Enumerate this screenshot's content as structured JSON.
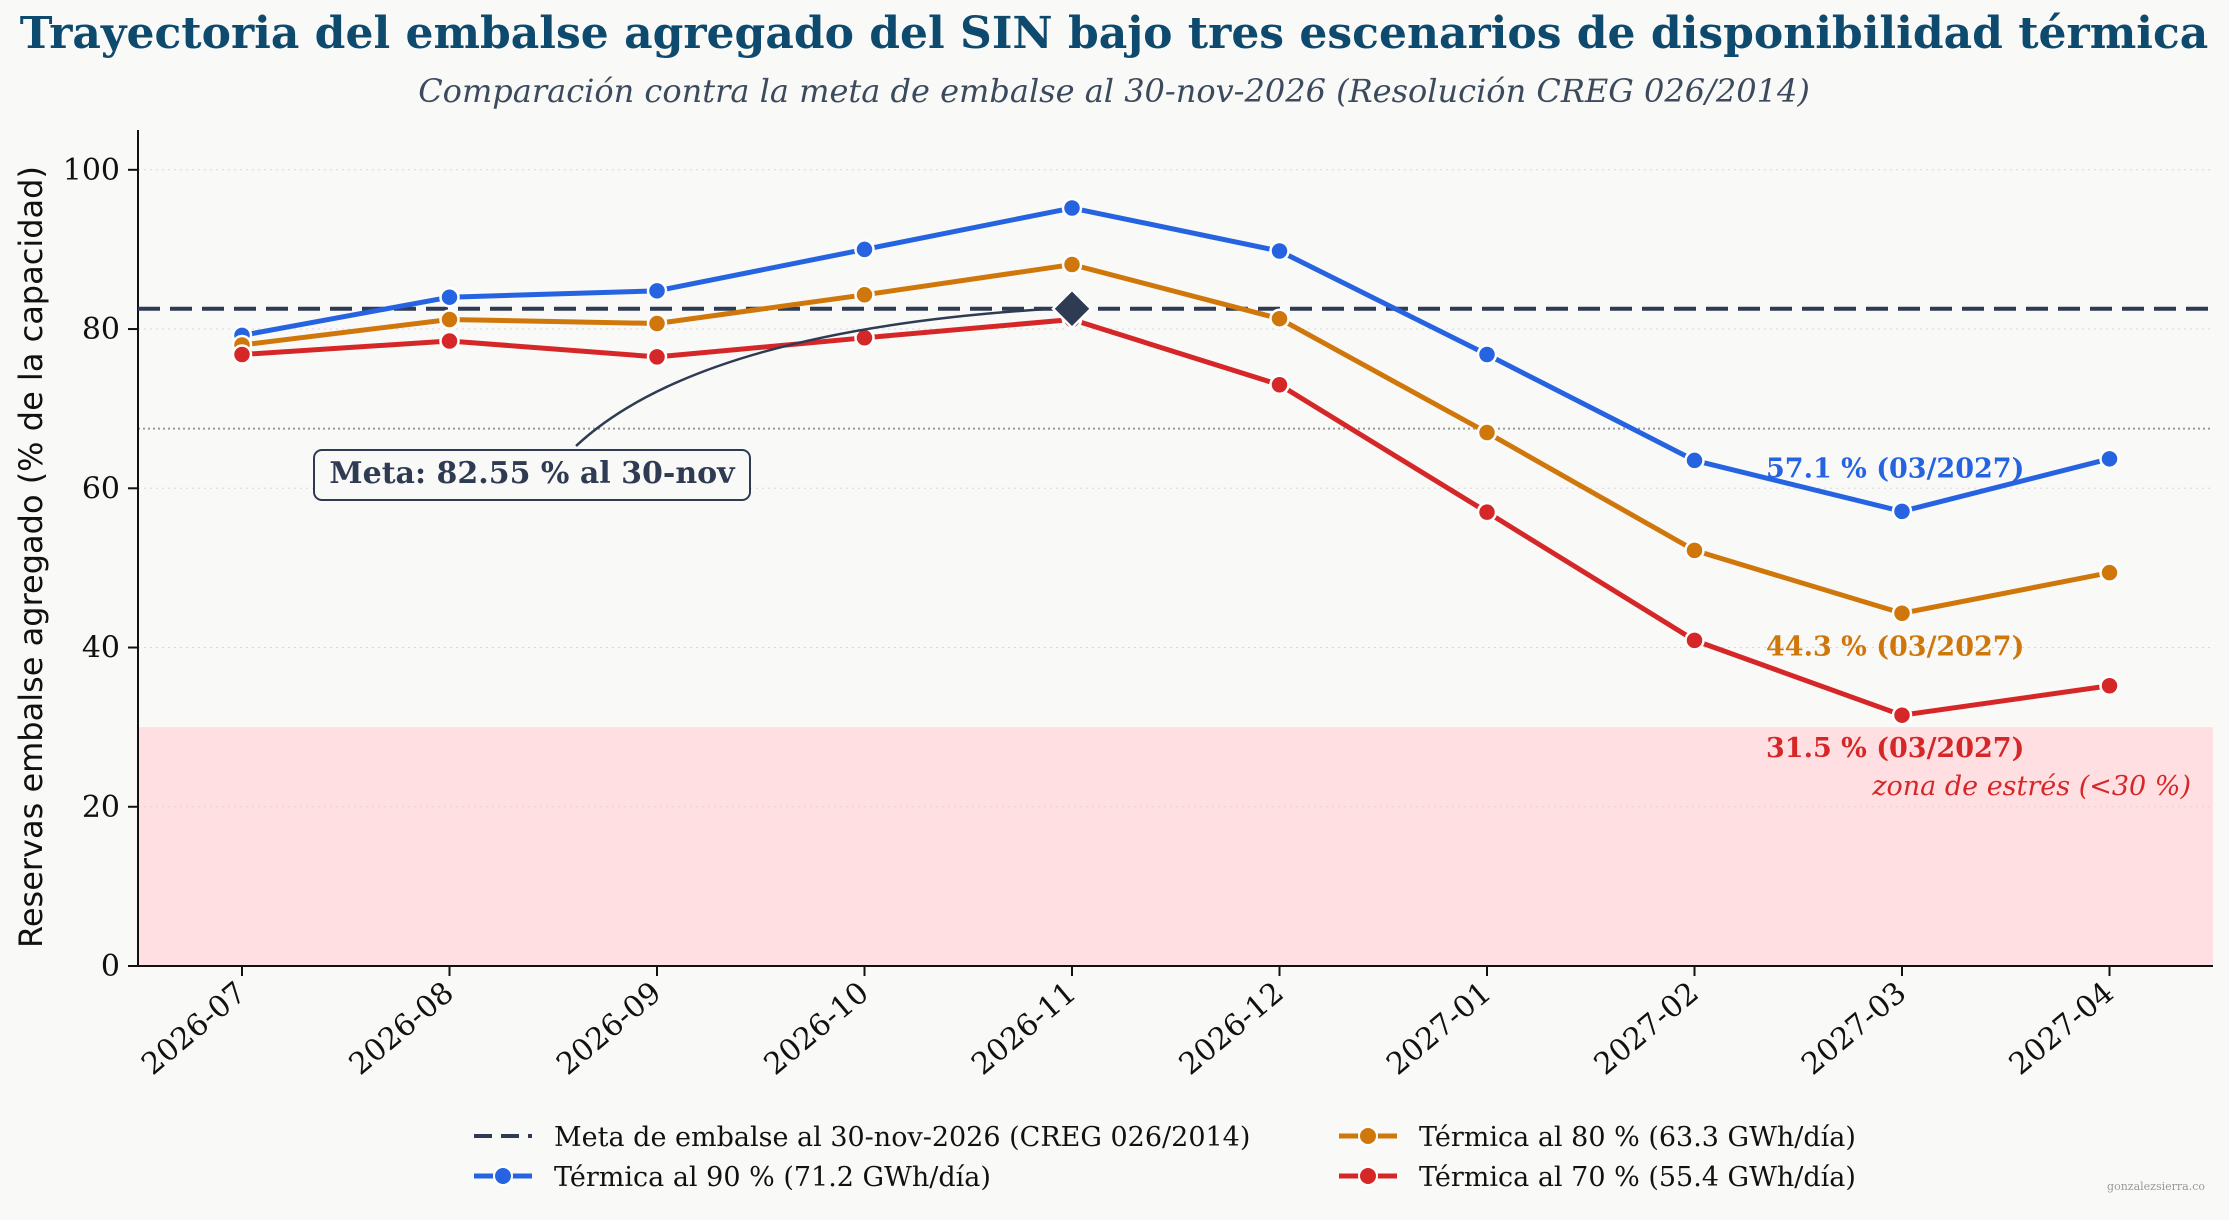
{
  "title": "Trayectoria del embalse agregado del SIN bajo tres escenarios de disponibilidad térmica",
  "subtitle": "Comparación contra la meta de embalse al 30-nov-2026 (Resolución CREG 026/2014)",
  "watermark": "gonzalezsierra.co",
  "chart_data": {
    "type": "line",
    "title": "Trayectoria del embalse agregado del SIN bajo tres escenarios de disponibilidad térmica",
    "subtitle": "Comparación contra la meta de embalse al 30-nov-2026 (Resolución CREG 026/2014)",
    "xlabel": "",
    "ylabel": "Reservas embalse agregado (% de la capacidad)",
    "ylim": [
      0,
      105
    ],
    "yticks": [
      0,
      20,
      40,
      60,
      80,
      100
    ],
    "categories": [
      "2026-07",
      "2026-08",
      "2026-09",
      "2026-10",
      "2026-11",
      "2026-12",
      "2027-01",
      "2027-02",
      "2027-03",
      "2027-04"
    ],
    "grid": "y-dotted",
    "legend_position": "bottom-center",
    "target": {
      "name": "Meta de embalse al 30-nov-2026 (CREG 026/2014)",
      "value": 82.55,
      "color": "#2f3b52",
      "marker_category": "2026-11",
      "annotation": "Meta: 82.55 % al 30-nov"
    },
    "reference_line": {
      "value": 67.5,
      "style": "dotted",
      "color": "#999999"
    },
    "stress_zone": {
      "from": 0,
      "to": 30,
      "color": "#ffdfe1",
      "label": "zona de estrés (<30 %)"
    },
    "series": [
      {
        "name": "Térmica al 90 % (71.2 GWh/día)",
        "color": "#2563e0",
        "values": [
          79.2,
          84.0,
          84.8,
          90.0,
          95.2,
          89.8,
          76.8,
          63.5,
          57.1,
          63.7
        ],
        "end_label": "57.1 % (03/2027)"
      },
      {
        "name": "Térmica al 80 % (63.3 GWh/día)",
        "color": "#d0770c",
        "values": [
          78.0,
          81.2,
          80.7,
          84.3,
          88.1,
          81.3,
          67.0,
          52.2,
          44.3,
          49.4
        ],
        "end_label": "44.3 % (03/2027)"
      },
      {
        "name": "Térmica al 70 % (55.4 GWh/día)",
        "color": "#d62728",
        "values": [
          76.8,
          78.5,
          76.5,
          78.9,
          81.2,
          73.0,
          57.0,
          40.9,
          31.5,
          35.2
        ],
        "end_label": "31.5 % (03/2027)"
      }
    ]
  }
}
